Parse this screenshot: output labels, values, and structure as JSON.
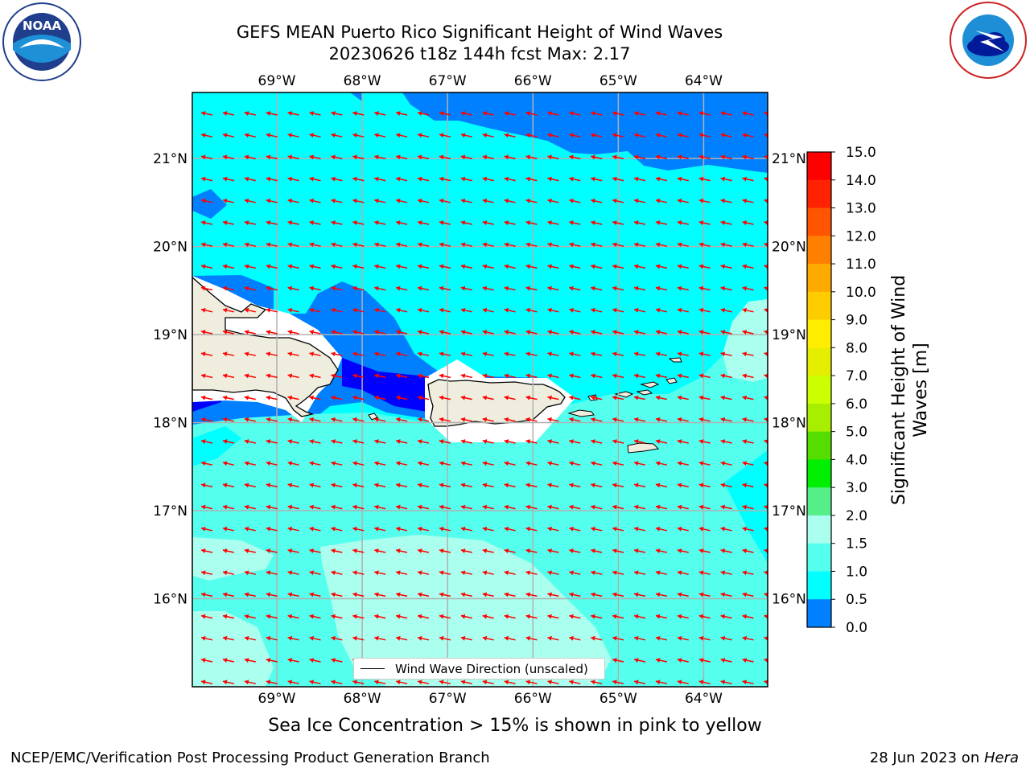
{
  "header": {
    "title_line1": "GEFS MEAN Puerto Rico Significant Height of Wind Waves",
    "title_line2": "20230626 t18z 144h fcst   Max: 2.17"
  },
  "logos": {
    "noaa_text": "NOAA",
    "noaa_ring_text": "NATIONAL OCEANIC AND ATMOSPHERIC ADMINISTRATION · U.S. DEPARTMENT OF COMMERCE",
    "nws_ring_text": "NATIONAL WEATHER SERVICE"
  },
  "map": {
    "lon_labels": [
      "69°W",
      "68°W",
      "67°W",
      "66°W",
      "65°W",
      "64°W"
    ],
    "lat_labels": [
      "21°N",
      "20°N",
      "19°N",
      "18°N",
      "17°N",
      "16°N"
    ],
    "lon_values": [
      -69,
      -68,
      -67,
      -66,
      -65,
      -64
    ],
    "lat_values": [
      21,
      20,
      19,
      18,
      17,
      16
    ],
    "extent": {
      "lon_min": -69.99,
      "lon_max": -63.25,
      "lat_min": 15.0,
      "lat_max": 21.75
    },
    "arrow_color": "#ff0000",
    "land_color": "#efedde",
    "grid_color": "#b0b0b0",
    "wave_direction": "westward (east to west)"
  },
  "legend": {
    "label": "Wind Wave Direction (unscaled)"
  },
  "colorbar": {
    "label": "Significant Height of Wind Waves [m]",
    "label_line1": "Significant Height of Wind",
    "label_line2": "Waves [m]",
    "ticks": [
      "15.0",
      "14.0",
      "13.0",
      "12.0",
      "11.0",
      "10.0",
      "9.0",
      "8.0",
      "7.0",
      "6.0",
      "5.0",
      "4.0",
      "3.0",
      "2.0",
      "1.5",
      "1.0",
      "0.5",
      "0.0"
    ],
    "colors": [
      "#ff0000",
      "#ff2200",
      "#ff5500",
      "#ff8000",
      "#ffaa00",
      "#ffcc00",
      "#ffee00",
      "#e6ee00",
      "#ccff00",
      "#a8ee00",
      "#55dd00",
      "#00ee00",
      "#55ee88",
      "#aaffee",
      "#55ffee",
      "#00ffff",
      "#0080ff",
      "#0000ff"
    ]
  },
  "notes": {
    "sea_ice": "Sea Ice Concentration > 15% is shown in pink to yellow"
  },
  "footer": {
    "left": "NCEP/EMC/Verification Post Processing Product Generation Branch",
    "right_prefix": "28 Jun 2023 on ",
    "right_machine": "Hera"
  }
}
